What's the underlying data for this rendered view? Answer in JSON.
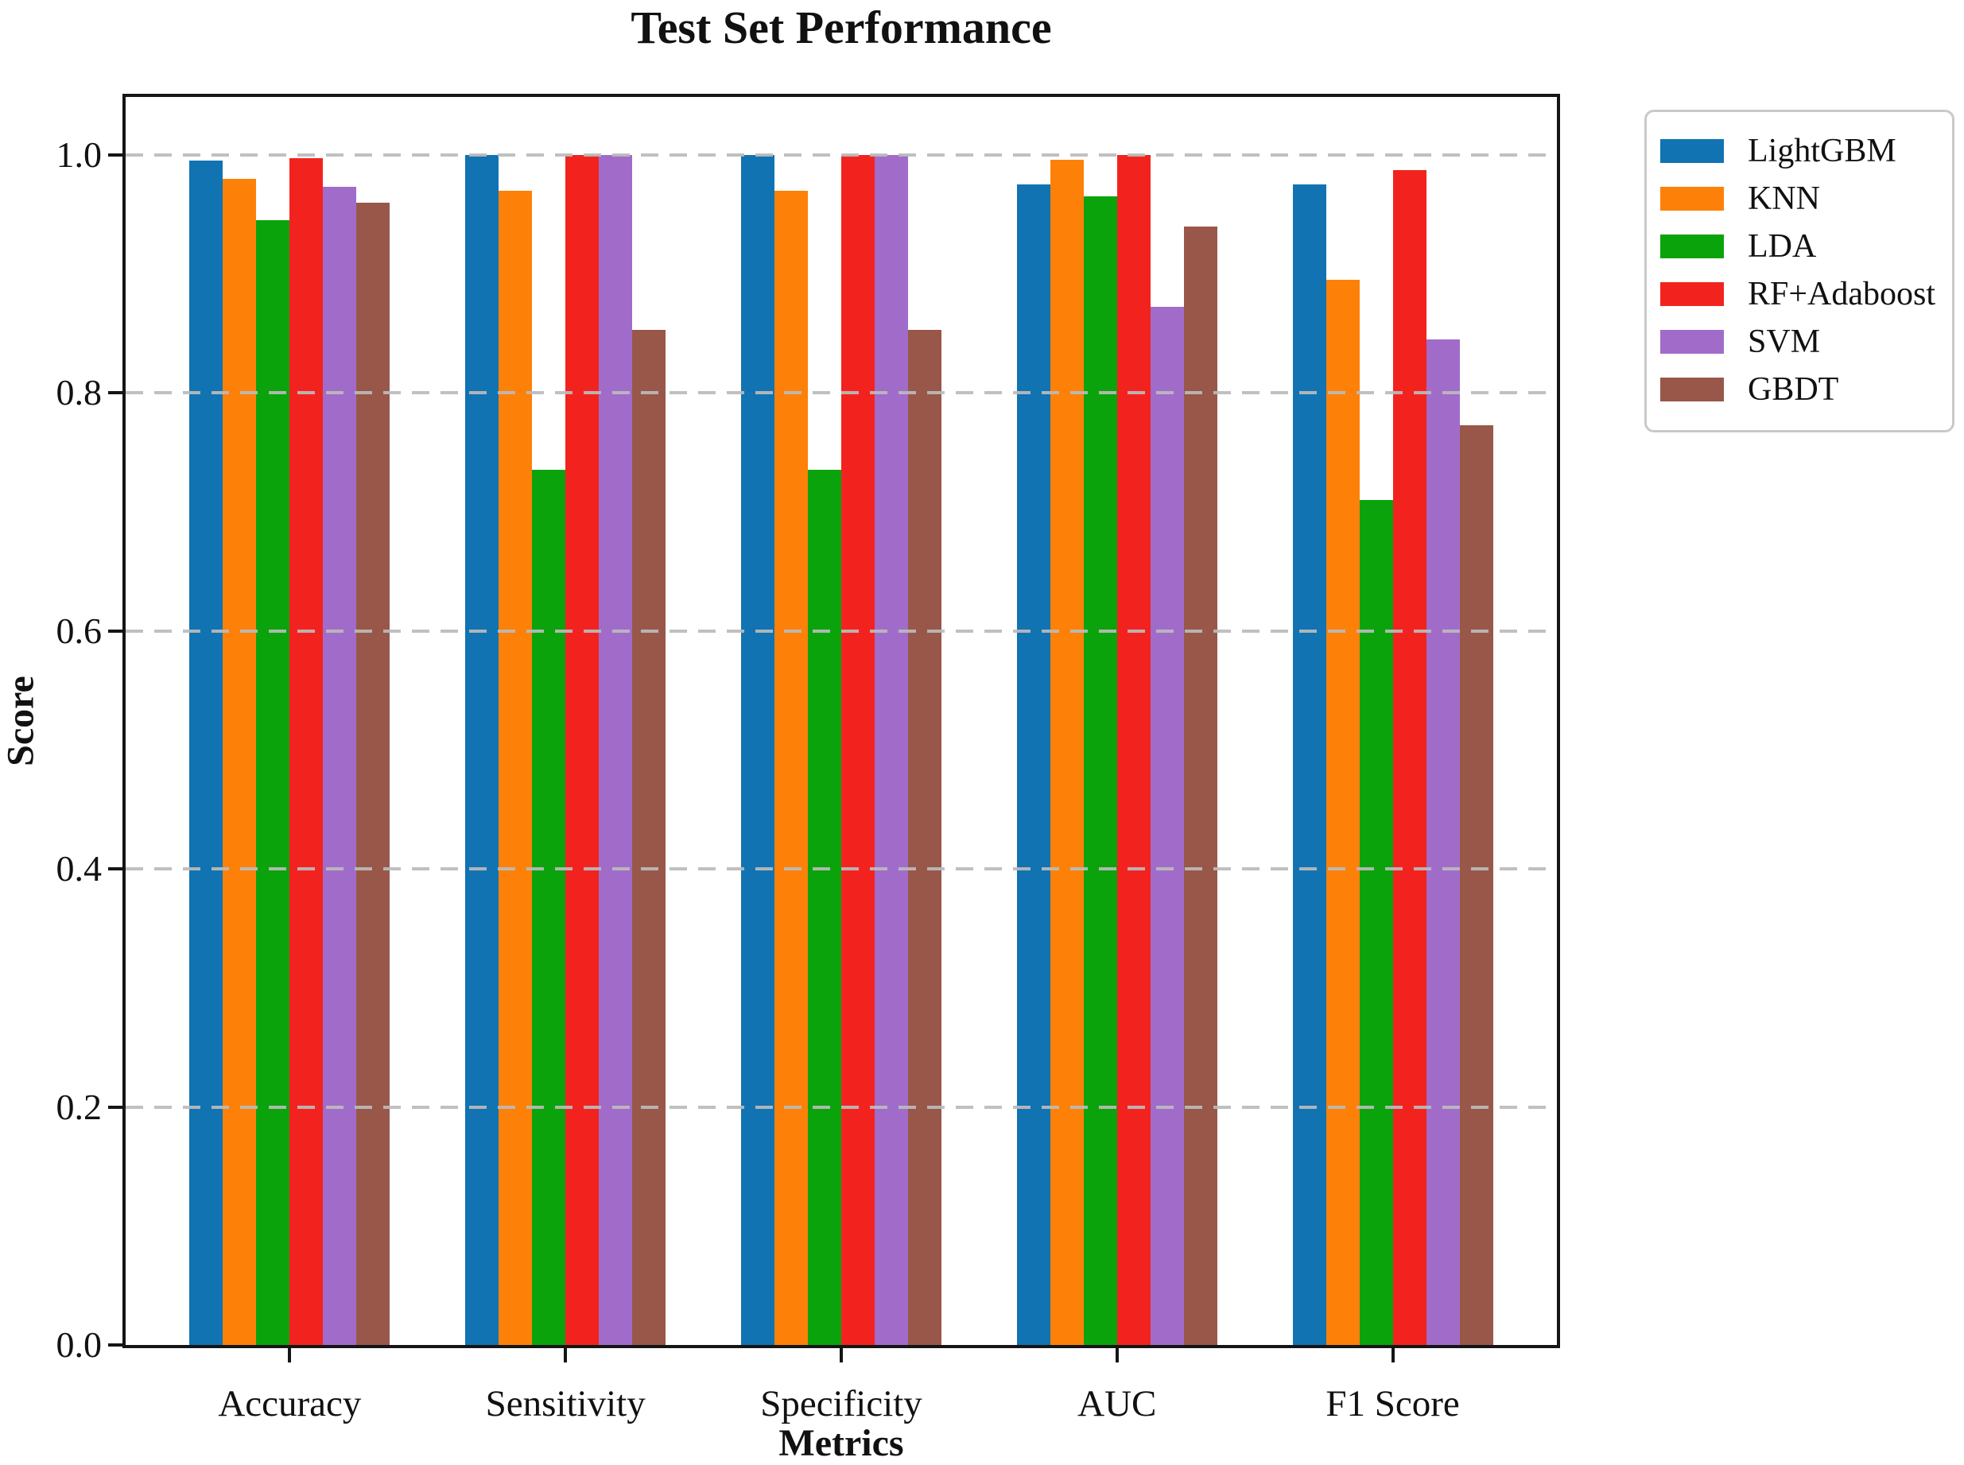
{
  "figure": {
    "title": "Test Set Performance",
    "xlabel": "Metrics",
    "ylabel": "Score"
  },
  "chart_data": {
    "type": "bar",
    "title": "Test Set Performance",
    "xlabel": "Metrics",
    "ylabel": "Score",
    "categories": [
      "Accuracy",
      "Sensitivity",
      "Specificity",
      "AUC",
      "F1 Score"
    ],
    "series": [
      {
        "name": "LightGBM",
        "color": "#1173b2",
        "values": [
          0.995,
          1.0,
          1.0,
          0.975,
          0.975
        ]
      },
      {
        "name": "KNN",
        "color": "#fd8108",
        "values": [
          0.98,
          0.97,
          0.97,
          0.996,
          0.895
        ]
      },
      {
        "name": "LDA",
        "color": "#0aa30c",
        "values": [
          0.945,
          0.735,
          0.735,
          0.965,
          0.71
        ]
      },
      {
        "name": "RF+Adaboost",
        "color": "#f2231f",
        "values": [
          0.997,
          1.0,
          1.0,
          1.0,
          0.987
        ]
      },
      {
        "name": "SVM",
        "color": "#a16cc9",
        "values": [
          0.973,
          1.0,
          1.0,
          0.872,
          0.845
        ]
      },
      {
        "name": "GBDT",
        "color": "#985749",
        "values": [
          0.96,
          0.853,
          0.853,
          0.94,
          0.773
        ]
      }
    ],
    "yticks": [
      0.0,
      0.2,
      0.4,
      0.6,
      0.8,
      1.0
    ],
    "ylim": [
      0,
      1.048
    ],
    "grid": "horizontal-dashed-over-bars",
    "grid_color": "#bbbbbb",
    "legend_position": "outside-upper-right",
    "legend_entries": [
      "LightGBM",
      "KNN",
      "LDA",
      "RF+Adaboost",
      "SVM",
      "GBDT"
    ]
  }
}
